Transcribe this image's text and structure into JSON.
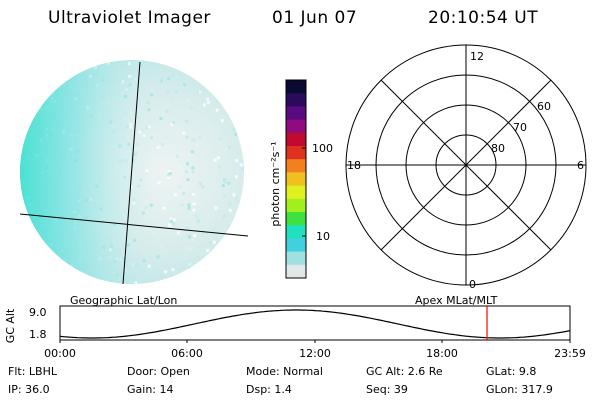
{
  "header": {
    "instrument": "Ultraviolet Imager",
    "date": "01 Jun 07",
    "time": "20:10:54 UT"
  },
  "colorbar": {
    "unit_label": "photon cm⁻²s⁻¹",
    "ticks": [
      "100",
      "10"
    ],
    "colors": [
      "#0a0a30",
      "#2a0a5a",
      "#5a0a80",
      "#900a80",
      "#c00a30",
      "#e03020",
      "#f08020",
      "#f0c020",
      "#e0f020",
      "#a0f020",
      "#40e040",
      "#20e0c0",
      "#40d0e0",
      "#a0e0e0",
      "#e0e8e8"
    ]
  },
  "polar_grid": {
    "mlt_labels": {
      "top": "12",
      "left": "18",
      "right": "6",
      "bottom": "0"
    },
    "lat_labels": [
      "60",
      "70",
      "80"
    ]
  },
  "timeline": {
    "left_label": "Geographic Lat/Lon",
    "right_label": "Apex MLat/MLT",
    "axis_title": "GC Alt",
    "y_ticks": [
      "9.0",
      "1.8"
    ],
    "x_ticks": [
      "00:00",
      "06:00",
      "12:00",
      "18:00",
      "23:59"
    ],
    "marker_color": "#ff0000"
  },
  "status": {
    "row1": {
      "filter": "Flt: LBHL",
      "door": "Door: Open",
      "mode": "Mode: Normal",
      "gc_alt": "GC Alt: 2.6 Re",
      "glat": "GLat:   9.8"
    },
    "row2": {
      "ip": "IP: 36.0",
      "gain": "Gain: 14",
      "dsp": "Dsp:    1.4",
      "seq": "Seq: 39",
      "glon": "GLon: 317.9"
    }
  }
}
